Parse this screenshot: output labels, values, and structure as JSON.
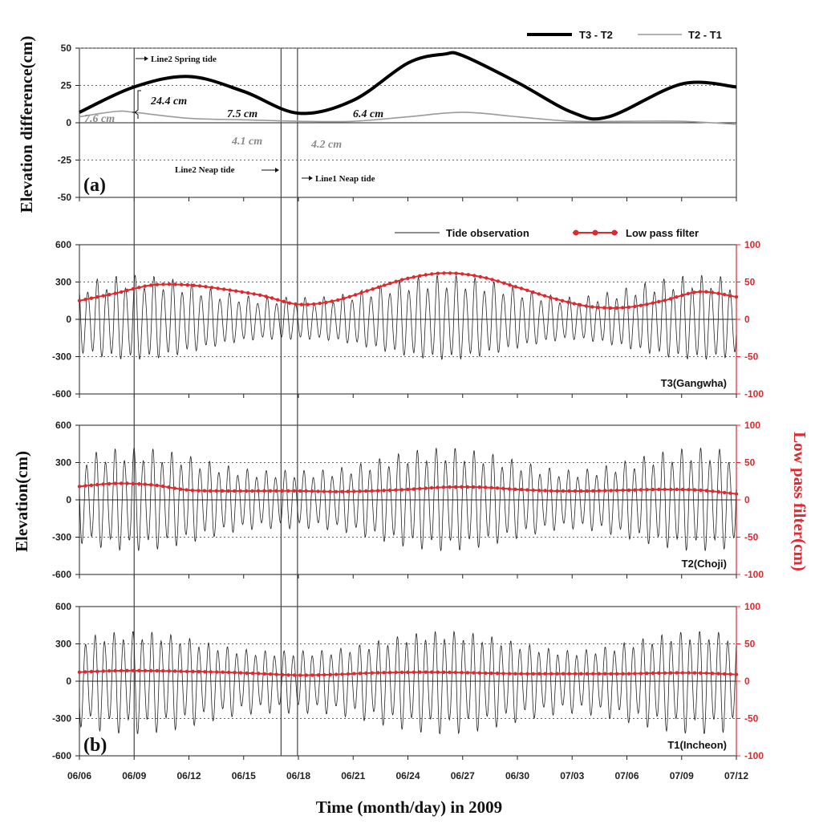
{
  "colors": {
    "t3_t2": "#000000",
    "t2_t1": "#9a9a9a",
    "tide": "#222222",
    "lowpass": "#e0282f",
    "grid": "#666666"
  },
  "x_axis": {
    "label": "Time (month/day) in 2009",
    "start": "06/06",
    "end": "07/12",
    "ticks": [
      "06/06",
      "06/09",
      "06/12",
      "06/15",
      "06/18",
      "06/21",
      "06/24",
      "06/27",
      "06/30",
      "07/03",
      "07/06",
      "07/09",
      "07/12"
    ]
  },
  "event_lines": [
    {
      "date_offset_days": 3,
      "label": "Line2 Spring tide"
    },
    {
      "date_offset_days": 11,
      "label": "Line2 Neap tide"
    },
    {
      "date_offset_days": 12,
      "label": "Line1 Neap tide"
    }
  ],
  "chart_data": [
    {
      "type": "line",
      "panel_label": "(a)",
      "ylabel": "Elevation difference(cm)",
      "ylim": [
        -50,
        50
      ],
      "yticks": [
        "50",
        "25",
        "0",
        "-25",
        "-50"
      ],
      "grid": "dotted horizontal",
      "legend_placement": "top-right",
      "series": [
        {
          "name": "T3 - T2",
          "x": [
            "06/06",
            "06/09",
            "06/12",
            "06/15",
            "06/18",
            "06/21",
            "06/24",
            "06/26",
            "06/27",
            "06/30",
            "07/03",
            "07/05",
            "07/09",
            "07/12"
          ],
          "values": [
            7,
            24,
            31,
            21,
            6.4,
            15,
            40,
            46,
            45,
            27,
            7,
            4,
            26,
            24
          ]
        },
        {
          "name": "T2 - T1",
          "x": [
            "06/06",
            "06/08",
            "06/09",
            "06/12",
            "06/15",
            "06/18",
            "06/21",
            "06/24",
            "06/27",
            "06/30",
            "07/03",
            "07/06",
            "07/09",
            "07/12"
          ],
          "values": [
            4,
            7.6,
            7,
            3,
            2,
            1,
            1,
            4,
            7,
            4,
            1,
            1,
            1,
            -1
          ]
        }
      ],
      "annotations": [
        {
          "text": "24.4 cm",
          "style": "black"
        },
        {
          "text": "7.6 cm",
          "style": "gray"
        },
        {
          "text": "7.5 cm",
          "style": "black"
        },
        {
          "text": "6.4 cm",
          "style": "black"
        },
        {
          "text": "4.1 cm",
          "style": "gray"
        },
        {
          "text": "4.2 cm",
          "style": "gray"
        }
      ]
    },
    {
      "type": "line",
      "panel_label": "",
      "station": "T3(Gangwha)",
      "ylim": [
        -600,
        600
      ],
      "ylim_right": [
        -100,
        100
      ],
      "yticks": [
        "600",
        "300",
        "0",
        "-300",
        "-600"
      ],
      "yticks_right": [
        "100",
        "50",
        "0",
        "-50",
        "-100"
      ],
      "tide": {
        "mean": 0,
        "amp_min": 190,
        "amp_max": 380,
        "spring_days": [
          3,
          20,
          34
        ]
      },
      "lowpass": {
        "name": "Low pass filter",
        "x": [
          0,
          2,
          4,
          6,
          8,
          10,
          12,
          14,
          16,
          18,
          20,
          22,
          24,
          26,
          28,
          30,
          32,
          34,
          36
        ],
        "values": [
          25,
          35,
          46,
          46,
          40,
          32,
          20,
          25,
          40,
          55,
          62,
          57,
          43,
          28,
          17,
          16,
          25,
          37,
          30
        ]
      }
    },
    {
      "type": "line",
      "panel_label": "",
      "station": "T2(Choji)",
      "ylim": [
        -600,
        600
      ],
      "ylim_right": [
        -100,
        100
      ],
      "yticks": [
        "600",
        "300",
        "0",
        "-300",
        "-600"
      ],
      "yticks_right": [
        "100",
        "50",
        "0",
        "-50",
        "-100"
      ],
      "tide": {
        "mean": 0,
        "amp_min": 260,
        "amp_max": 460,
        "spring_days": [
          3,
          20,
          34
        ]
      },
      "lowpass": {
        "name": "Low pass filter",
        "x": [
          0,
          2,
          4,
          6,
          8,
          10,
          12,
          14,
          16,
          18,
          20,
          22,
          24,
          26,
          28,
          30,
          32,
          34,
          36
        ],
        "values": [
          18,
          22,
          20,
          13,
          12,
          12,
          12,
          11,
          12,
          14,
          17,
          17,
          14,
          12,
          12,
          13,
          14,
          13,
          8
        ]
      }
    },
    {
      "type": "line",
      "panel_label": "(b)",
      "station": "T1(Incheon)",
      "ylim": [
        -600,
        600
      ],
      "ylim_right": [
        -100,
        100
      ],
      "yticks": [
        "600",
        "300",
        "0",
        "-300",
        "-600"
      ],
      "yticks_right": [
        "100",
        "50",
        "0",
        "-50",
        "-100"
      ],
      "tide": {
        "mean": 0,
        "amp_min": 280,
        "amp_max": 460,
        "spring_days": [
          3,
          20,
          34
        ]
      },
      "lowpass": {
        "name": "Low pass filter",
        "x": [
          0,
          2,
          4,
          6,
          8,
          10,
          12,
          14,
          16,
          18,
          20,
          22,
          24,
          26,
          28,
          30,
          32,
          34,
          36
        ],
        "values": [
          12,
          14,
          14,
          13,
          12,
          10,
          8,
          9,
          11,
          12,
          12,
          11,
          10,
          10,
          10,
          10,
          11,
          11,
          9
        ]
      }
    }
  ],
  "legend_bottom": {
    "tide_label": "Tide observation",
    "lowpass_label": "Low pass filter"
  },
  "left_axis_label": "Elevation(cm)",
  "right_axis_label": "Low pass filter(cm)"
}
